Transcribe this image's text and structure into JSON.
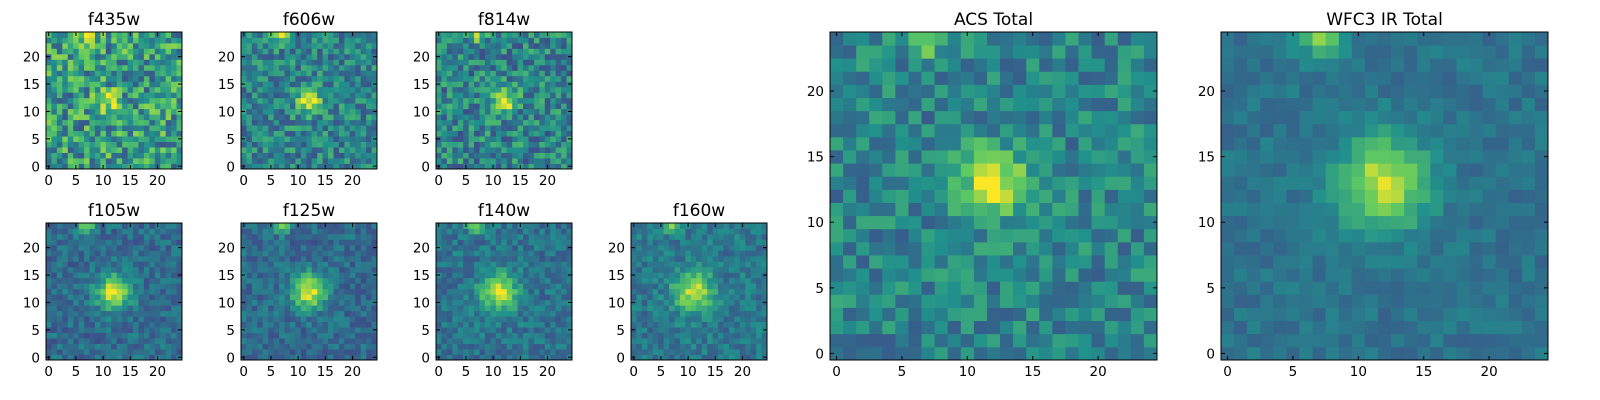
{
  "figure": {
    "background": "#ffffff",
    "colormap": [
      "#440154",
      "#3b528b",
      "#21918c",
      "#5ec962",
      "#fde725"
    ]
  },
  "chart_data": [
    {
      "type": "heatmap",
      "title": "f435w",
      "grid_size": 25,
      "xticks": [
        0,
        5,
        10,
        15,
        20
      ],
      "yticks": [
        0,
        5,
        10,
        15,
        20
      ],
      "source": {
        "x": 11,
        "y": 12,
        "sigma": 1.4,
        "amp": 0.35
      },
      "noise": 0.28,
      "base": 0.55,
      "seed": 11
    },
    {
      "type": "heatmap",
      "title": "f606w",
      "grid_size": 25,
      "xticks": [
        0,
        5,
        10,
        15,
        20
      ],
      "yticks": [
        0,
        5,
        10,
        15,
        20
      ],
      "source": {
        "x": 12,
        "y": 12,
        "sigma": 1.6,
        "amp": 0.55
      },
      "noise": 0.2,
      "base": 0.45,
      "seed": 23
    },
    {
      "type": "heatmap",
      "title": "f814w",
      "grid_size": 25,
      "xticks": [
        0,
        5,
        10,
        15,
        20
      ],
      "yticks": [
        0,
        5,
        10,
        15,
        20
      ],
      "source": {
        "x": 12,
        "y": 12,
        "sigma": 1.6,
        "amp": 0.5
      },
      "noise": 0.22,
      "base": 0.45,
      "seed": 37
    },
    {
      "type": "heatmap",
      "title": "f105w",
      "grid_size": 25,
      "xticks": [
        0,
        5,
        10,
        15,
        20
      ],
      "yticks": [
        0,
        5,
        10,
        15,
        20
      ],
      "source": {
        "x": 12,
        "y": 12,
        "sigma": 2.2,
        "amp": 0.6
      },
      "noise": 0.12,
      "base": 0.35,
      "seed": 41
    },
    {
      "type": "heatmap",
      "title": "f125w",
      "grid_size": 25,
      "xticks": [
        0,
        5,
        10,
        15,
        20
      ],
      "yticks": [
        0,
        5,
        10,
        15,
        20
      ],
      "source": {
        "x": 12,
        "y": 12,
        "sigma": 2.2,
        "amp": 0.6
      },
      "noise": 0.12,
      "base": 0.35,
      "seed": 53
    },
    {
      "type": "heatmap",
      "title": "f140w",
      "grid_size": 25,
      "xticks": [
        0,
        5,
        10,
        15,
        20
      ],
      "yticks": [
        0,
        5,
        10,
        15,
        20
      ],
      "source": {
        "x": 11,
        "y": 12,
        "sigma": 2.4,
        "amp": 0.55
      },
      "noise": 0.12,
      "base": 0.38,
      "seed": 67
    },
    {
      "type": "heatmap",
      "title": "f160w",
      "grid_size": 25,
      "xticks": [
        0,
        5,
        10,
        15,
        20
      ],
      "yticks": [
        0,
        5,
        10,
        15,
        20
      ],
      "source": {
        "x": 11,
        "y": 12,
        "sigma": 2.6,
        "amp": 0.5
      },
      "noise": 0.12,
      "base": 0.4,
      "seed": 79
    },
    {
      "type": "heatmap",
      "title": "ACS Total",
      "grid_size": 25,
      "xticks": [
        0,
        5,
        10,
        15,
        20
      ],
      "yticks": [
        0,
        5,
        10,
        15,
        20
      ],
      "source": {
        "x": 12,
        "y": 13,
        "sigma": 1.8,
        "amp": 0.55
      },
      "noise": 0.16,
      "base": 0.45,
      "seed": 97
    },
    {
      "type": "heatmap",
      "title": "WFC3 IR Total",
      "grid_size": 25,
      "xticks": [
        0,
        5,
        10,
        15,
        20
      ],
      "yticks": [
        0,
        5,
        10,
        15,
        20
      ],
      "source": {
        "x": 12,
        "y": 13,
        "sigma": 2.4,
        "amp": 0.55
      },
      "noise": 0.07,
      "base": 0.38,
      "seed": 101
    }
  ]
}
